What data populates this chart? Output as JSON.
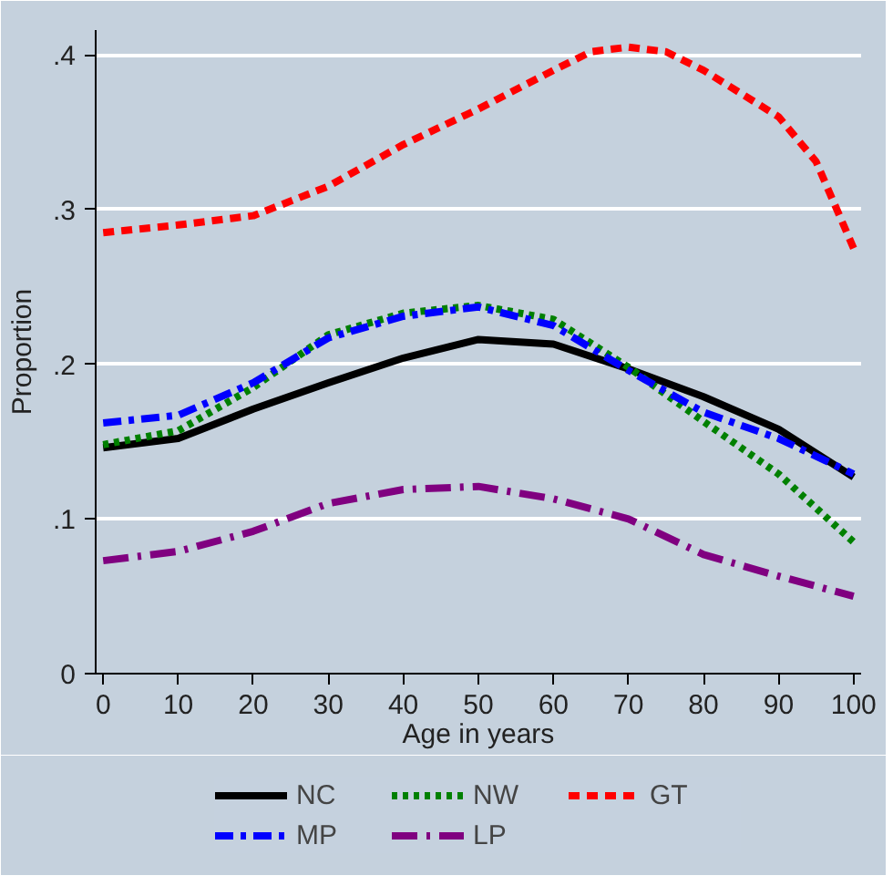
{
  "chart_data": {
    "type": "line",
    "xlabel": "Age in years",
    "ylabel": "Proportion",
    "x": [
      0,
      10,
      20,
      30,
      40,
      50,
      60,
      70,
      80,
      90,
      100
    ],
    "series": [
      {
        "name": "NC",
        "color": "#000000",
        "line_style": "solid",
        "values": [
          0.146,
          0.152,
          0.171,
          0.188,
          0.204,
          0.216,
          0.213,
          0.197,
          0.179,
          0.158,
          0.127
        ]
      },
      {
        "name": "NW",
        "color": "#008000",
        "line_style": "dotted",
        "values": [
          0.148,
          0.157,
          0.185,
          0.219,
          0.233,
          0.238,
          0.229,
          0.198,
          0.163,
          0.129,
          0.085
        ]
      },
      {
        "name": "GT",
        "color": "#ff0000",
        "line_style": "dashed",
        "x": [
          0,
          10,
          20,
          30,
          40,
          50,
          60,
          65,
          70,
          75,
          80,
          90,
          95,
          100
        ],
        "values": [
          0.285,
          0.29,
          0.296,
          0.315,
          0.342,
          0.365,
          0.39,
          0.402,
          0.405,
          0.402,
          0.39,
          0.36,
          0.331,
          0.275
        ]
      },
      {
        "name": "MP",
        "color": "#0000ff",
        "line_style": "dashdot",
        "values": [
          0.162,
          0.167,
          0.188,
          0.217,
          0.231,
          0.237,
          0.225,
          0.196,
          0.169,
          0.152,
          0.129
        ]
      },
      {
        "name": "LP",
        "color": "#800080",
        "line_style": "longdashdot",
        "values": [
          0.073,
          0.079,
          0.092,
          0.11,
          0.119,
          0.121,
          0.113,
          0.1,
          0.077,
          0.063,
          0.05
        ]
      }
    ],
    "xlim": [
      -1,
      101
    ],
    "ylim": [
      0,
      0.416
    ],
    "xticks": [
      0,
      10,
      20,
      30,
      40,
      50,
      60,
      70,
      80,
      90,
      100
    ],
    "yticks": [
      {
        "value": 0,
        "label": "0"
      },
      {
        "value": 0.1,
        "label": ".1"
      },
      {
        "value": 0.2,
        "label": ".2"
      },
      {
        "value": 0.3,
        "label": ".3"
      },
      {
        "value": 0.4,
        "label": ".4"
      }
    ],
    "grid": "y",
    "legend": "bottom",
    "marker": "none"
  }
}
